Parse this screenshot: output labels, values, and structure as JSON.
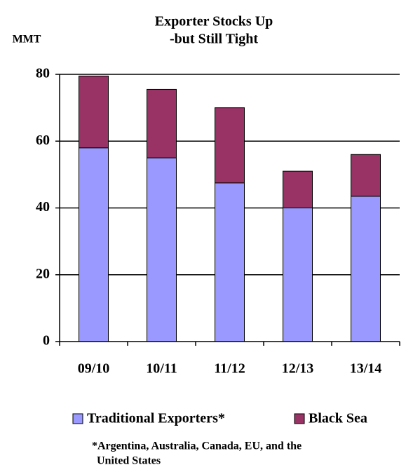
{
  "chart_data": {
    "type": "stacked_bar",
    "title": "Exporter Stocks Up",
    "subtitle": "-but Still Tight",
    "ylabel": "MMT",
    "categories": [
      "09/10",
      "10/11",
      "11/12",
      "12/13",
      "13/14"
    ],
    "series": [
      {
        "name": "Traditional Exporters*",
        "color": "#9999ff",
        "values": [
          58,
          55,
          47.5,
          40,
          43.5
        ]
      },
      {
        "name": "Black Sea",
        "color": "#993366",
        "values": [
          21.5,
          20.5,
          22.5,
          11,
          12.5
        ]
      }
    ],
    "ylim": [
      0,
      80
    ],
    "yticks": [
      0,
      20,
      40,
      60,
      80
    ],
    "grid": true,
    "legend": "bottom",
    "note": [
      "*Argentina, Australia, Canada, EU, and the",
      "United States"
    ]
  }
}
